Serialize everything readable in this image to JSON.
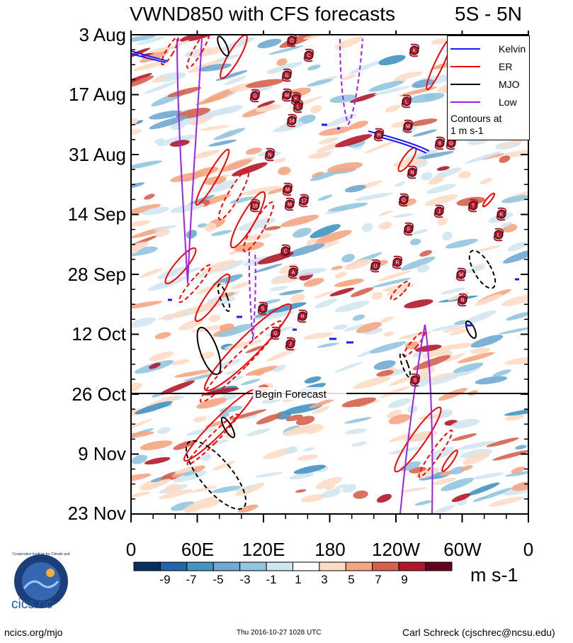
{
  "header": {
    "title": "VWND850 with CFS forecasts",
    "region": "5S - 5N"
  },
  "chart_data": {
    "type": "heatmap",
    "title": "VWND850 with CFS forecasts",
    "region": "5S - 5N",
    "y_labels": [
      "3 Aug",
      "17 Aug",
      "31 Aug",
      "14 Sep",
      "28 Sep",
      "12 Oct",
      "26 Oct",
      "9 Nov",
      "23 Nov"
    ],
    "x_labels": [
      "0",
      "60E",
      "120E",
      "180",
      "120W",
      "60W",
      "0"
    ],
    "forecast_label": "Begin Forecast",
    "colorbar": {
      "unit": "m s-1",
      "labels": [
        "-9",
        "-7",
        "-5",
        "-3",
        "-1",
        "1",
        "3",
        "5",
        "7",
        "9"
      ],
      "colors": [
        "#053061",
        "#2166ac",
        "#4393c3",
        "#6fa8d0",
        "#92c5de",
        "#d1e5f0",
        "#ffffff",
        "#fddbc7",
        "#f4a582",
        "#d6604d",
        "#b2182b",
        "#67001f"
      ]
    },
    "legend": {
      "items": [
        {
          "label": "Kelvin",
          "color": "#1a1aff"
        },
        {
          "label": "ER",
          "color": "#ff0000"
        },
        {
          "label": "MJO",
          "color": "#000000"
        },
        {
          "label": "Low",
          "color": "#a020f0"
        }
      ],
      "note_line1": "Contours at",
      "note_line2": "1 m s-1"
    },
    "storm_labels": [
      "O",
      "C",
      "G",
      "D",
      "M",
      "K",
      "L",
      "14",
      "N",
      "M",
      "17",
      "18",
      "M",
      "C",
      "A",
      "S",
      "H",
      "G",
      "J",
      "K",
      "L",
      "M",
      "H",
      "8",
      "N",
      "O",
      "J",
      "F",
      "U",
      "R",
      "M",
      "N",
      "L",
      "K",
      "T",
      "G",
      "S"
    ]
  },
  "footer": {
    "left": "ncics.org/mjo",
    "center": "Thu 2016-10-27 1028 UTC",
    "right": "Carl Schreck (cjschrec@ncsu.edu)"
  },
  "logo": {
    "text": "cics.nc",
    "ring_text": "Cooperative Institute for Climate and Satellites"
  }
}
